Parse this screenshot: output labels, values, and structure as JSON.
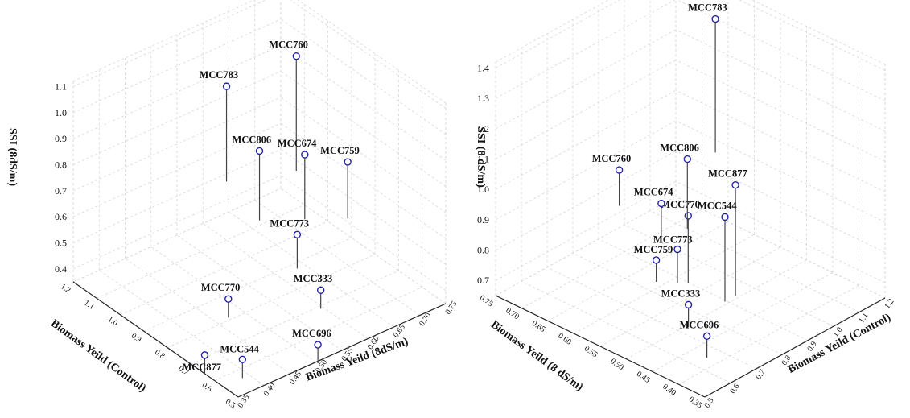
{
  "chart_data": [
    {
      "type": "scatter",
      "zlabel": "SSI (8dS/m)",
      "xlabel": "Biomass Yeild (Control)",
      "ylabel": "Biomass Yeild (8dS/m)",
      "z_ticks": [
        "0.4",
        "0.5",
        "0.6",
        "0.7",
        "0.8",
        "0.9",
        "1.0",
        "1.1"
      ],
      "x_ticks": [
        "0.5",
        "0.6",
        "0.7",
        "0.8",
        "0.9",
        "1.0",
        "1.1",
        "1.2"
      ],
      "y_ticks": [
        "0.35",
        "0.40",
        "0.45",
        "0.50",
        "0.55",
        "0.60",
        "0.65",
        "0.70",
        "0.75"
      ],
      "points": [
        {
          "label": "MCC760",
          "x": 0.98,
          "y": 0.68,
          "z": 1.06
        },
        {
          "label": "MCC783",
          "x": 1.1,
          "y": 0.6,
          "z": 0.94
        },
        {
          "label": "MCC806",
          "x": 0.96,
          "y": 0.6,
          "z": 0.78
        },
        {
          "label": "MCC674",
          "x": 0.9,
          "y": 0.66,
          "z": 0.75
        },
        {
          "label": "MCC759",
          "x": 0.85,
          "y": 0.72,
          "z": 0.7
        },
        {
          "label": "MCC773",
          "x": 0.8,
          "y": 0.6,
          "z": 0.56
        },
        {
          "label": "MCC770",
          "x": 0.85,
          "y": 0.49,
          "z": 0.38
        },
        {
          "label": "MCC333",
          "x": 0.7,
          "y": 0.6,
          "z": 0.41
        },
        {
          "label": "MCC544",
          "x": 0.68,
          "y": 0.44,
          "z": 0.3
        },
        {
          "label": "MCC877",
          "x": 0.73,
          "y": 0.39,
          "z": 0.33
        },
        {
          "label": "MCC696",
          "x": 0.58,
          "y": 0.54,
          "z": 0.33
        }
      ]
    },
    {
      "type": "scatter",
      "zlabel": "SSI (8 dS/m)",
      "xlabel": "Biomass Yeild (8 dS/m)",
      "ylabel": "Biomass Yeild (Control)",
      "z_ticks": [
        "0.7",
        "0.8",
        "0.9",
        "1.0",
        "1.1",
        "1.2",
        "1.3",
        "1.4"
      ],
      "x_ticks": [
        "0.35",
        "0.40",
        "0.45",
        "0.50",
        "0.55",
        "0.60",
        "0.65",
        "0.70",
        "0.75"
      ],
      "y_ticks": [
        "0.5",
        "0.6",
        "0.7",
        "0.8",
        "0.9",
        "1.0",
        "1.1",
        "1.2"
      ],
      "points": [
        {
          "label": "MCC783",
          "x": 0.64,
          "y": 1.13,
          "z": 1.36
        },
        {
          "label": "MCC877",
          "x": 0.38,
          "y": 0.68,
          "z": 1.24
        },
        {
          "label": "MCC544",
          "x": 0.41,
          "y": 0.7,
          "z": 1.1
        },
        {
          "label": "MCC770",
          "x": 0.5,
          "y": 0.74,
          "z": 1.01
        },
        {
          "label": "MCC806",
          "x": 0.6,
          "y": 0.94,
          "z": 1.02
        },
        {
          "label": "MCC773",
          "x": 0.55,
          "y": 0.8,
          "z": 0.83
        },
        {
          "label": "MCC674",
          "x": 0.64,
          "y": 0.92,
          "z": 0.85
        },
        {
          "label": "MCC760",
          "x": 0.75,
          "y": 0.98,
          "z": 0.84
        },
        {
          "label": "MCC696",
          "x": 0.41,
          "y": 0.63,
          "z": 0.74
        },
        {
          "label": "MCC333",
          "x": 0.47,
          "y": 0.68,
          "z": 0.77
        },
        {
          "label": "MCC759",
          "x": 0.63,
          "y": 0.88,
          "z": 0.69
        }
      ]
    }
  ]
}
